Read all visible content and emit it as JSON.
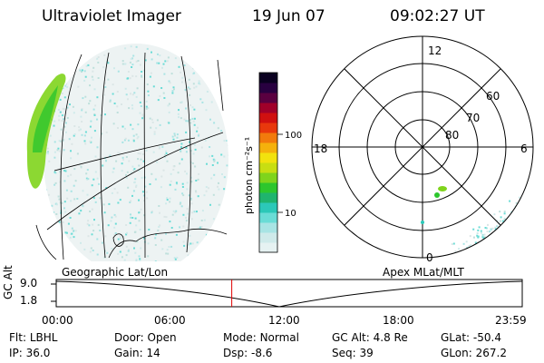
{
  "header": {
    "title": "Ultraviolet Imager",
    "date": "19 Jun 07",
    "time": "09:02:27 UT"
  },
  "colorbar": {
    "unit_label": "photon cm⁻²s⁻¹",
    "tick_labels": [
      "100",
      "10"
    ],
    "colors": [
      "#e6f2f2",
      "#cfeaea",
      "#a8e4e4",
      "#6adcd6",
      "#2cc8b8",
      "#1fb46e",
      "#2dc62d",
      "#7fd41c",
      "#c8de12",
      "#f2e20e",
      "#f5b10c",
      "#f27a0c",
      "#e8380c",
      "#d01010",
      "#a0002a",
      "#5a0040",
      "#280040",
      "#0a0020"
    ]
  },
  "polar": {
    "lat_labels": [
      "60",
      "70",
      "80"
    ],
    "mlt_labels": {
      "top": "12",
      "left": "18",
      "right": "6",
      "bottom": "0"
    }
  },
  "left_panel": {
    "caption": "Geographic Lat/Lon"
  },
  "right_panel": {
    "caption": "Apex MLat/MLT"
  },
  "timeline": {
    "ylabel": "GC Alt",
    "ytick_labels": [
      "9.0",
      "1.8"
    ],
    "xtick_labels": [
      "00:00",
      "06:00",
      "12:00",
      "18:00",
      "23:59"
    ],
    "current_time_hours": 9.04,
    "marker_color": "#e00000"
  },
  "info": [
    {
      "label": "Flt:",
      "value": "LBHL"
    },
    {
      "label": "Door:",
      "value": "Open"
    },
    {
      "label": "Mode:",
      "value": "Normal"
    },
    {
      "label": "GC Alt:",
      "value": "4.8 Re"
    },
    {
      "label": "GLat:",
      "value": "-50.4"
    },
    {
      "label": "IP:",
      "value": "36.0"
    },
    {
      "label": "Gain:",
      "value": "14"
    },
    {
      "label": "Dsp:",
      "value": "-8.6"
    },
    {
      "label": "Seq:",
      "value": "39"
    },
    {
      "label": "GLon:",
      "value": "267.2"
    }
  ]
}
